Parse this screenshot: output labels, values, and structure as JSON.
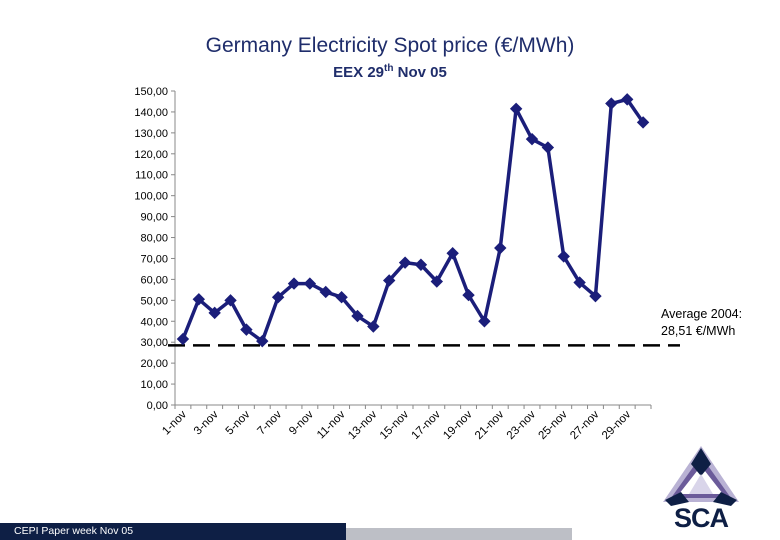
{
  "chart_data": {
    "type": "line",
    "title": "Germany Electricity Spot price (€/MWh)",
    "subtitle_main": "EEX 29",
    "subtitle_sup": "th",
    "subtitle_rest": " Nov 05",
    "xlabel": "",
    "ylabel": "",
    "ylim": [
      0,
      150
    ],
    "ytick_labels": [
      "0,00",
      "10,00",
      "20,00",
      "30,00",
      "40,00",
      "50,00",
      "60,00",
      "70,00",
      "80,00",
      "90,00",
      "100,00",
      "110,00",
      "120,00",
      "130,00",
      "140,00",
      "150,00"
    ],
    "xtick_labels": [
      "1-nov",
      "3-nov",
      "5-nov",
      "7-nov",
      "9-nov",
      "11-nov",
      "13-nov",
      "15-nov",
      "17-nov",
      "19-nov",
      "21-nov",
      "23-nov",
      "25-nov",
      "27-nov",
      "29-nov"
    ],
    "series": [
      {
        "name": "Spot price",
        "color": "#1b1e7a",
        "values": [
          31.5,
          50.5,
          44,
          50,
          36,
          30.5,
          51.5,
          58,
          58,
          54,
          51.5,
          42.5,
          37.5,
          59.5,
          68,
          67,
          59,
          72.5,
          52.5,
          40,
          75,
          141.5,
          127,
          123,
          71,
          58.5,
          52,
          144,
          146,
          135
        ]
      }
    ],
    "reference_line": {
      "value": 28.51,
      "label_line1": "Average 2004:",
      "label_line2": "28,51 €/MWh",
      "color": "#000000"
    },
    "grid": false
  },
  "footer": {
    "text": "CEPI Paper week Nov 05"
  },
  "logo": {
    "text": "SCA",
    "colors": [
      "#0e1f45",
      "#6b5b9a",
      "#b9b2d4"
    ]
  }
}
